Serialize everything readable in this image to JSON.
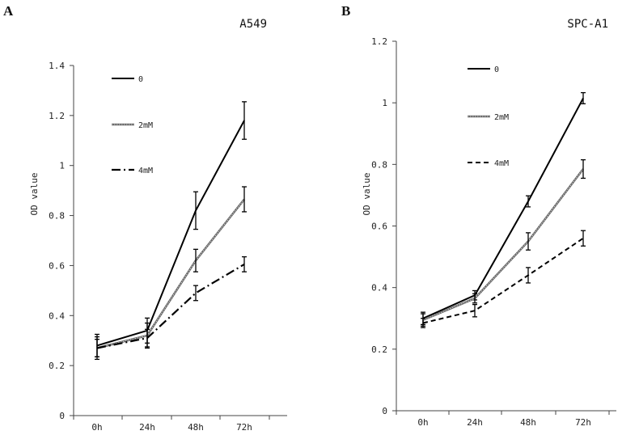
{
  "chart_data": [
    {
      "type": "line",
      "panel_label": "A",
      "title": "A549",
      "xlabel": "",
      "ylabel": "OD value",
      "categories": [
        "0h",
        "24h",
        "48h",
        "72h"
      ],
      "ylim": [
        0,
        1.4
      ],
      "yticks": [
        "0",
        "0.2",
        "0.4",
        "0.6",
        "0.8",
        "1",
        "1.2",
        "1.4"
      ],
      "grid": false,
      "legend_position": "top-left",
      "series": [
        {
          "name": "0",
          "values": [
            0.28,
            0.34,
            0.82,
            1.18
          ],
          "errors": [
            0.045,
            0.05,
            0.075,
            0.075
          ],
          "style": "solid"
        },
        {
          "name": "2mM",
          "values": [
            0.27,
            0.32,
            0.62,
            0.865
          ],
          "errors": [
            0.035,
            0.05,
            0.045,
            0.05
          ],
          "style": "double"
        },
        {
          "name": "4mM",
          "values": [
            0.27,
            0.31,
            0.49,
            0.605
          ],
          "errors": [
            0.045,
            0.035,
            0.03,
            0.03
          ],
          "style": "dashdot"
        }
      ]
    },
    {
      "type": "line",
      "panel_label": "B",
      "title": "SPC-A1",
      "xlabel": "",
      "ylabel": "OD value",
      "categories": [
        "0h",
        "24h",
        "48h",
        "72h"
      ],
      "ylim": [
        0,
        1.2
      ],
      "yticks": [
        "0",
        "0.2",
        "0.4",
        "0.6",
        "0.8",
        "1",
        "1.2"
      ],
      "grid": false,
      "legend_position": "top-left",
      "series": [
        {
          "name": "0",
          "values": [
            0.3,
            0.375,
            0.68,
            1.015
          ],
          "errors": [
            0.02,
            0.015,
            0.018,
            0.018
          ],
          "style": "solid"
        },
        {
          "name": "2mM",
          "values": [
            0.295,
            0.365,
            0.55,
            0.785
          ],
          "errors": [
            0.02,
            0.015,
            0.028,
            0.03
          ],
          "style": "double"
        },
        {
          "name": "4mM",
          "values": [
            0.285,
            0.325,
            0.44,
            0.56
          ],
          "errors": [
            0.015,
            0.02,
            0.025,
            0.025
          ],
          "style": "dashed"
        }
      ]
    }
  ]
}
